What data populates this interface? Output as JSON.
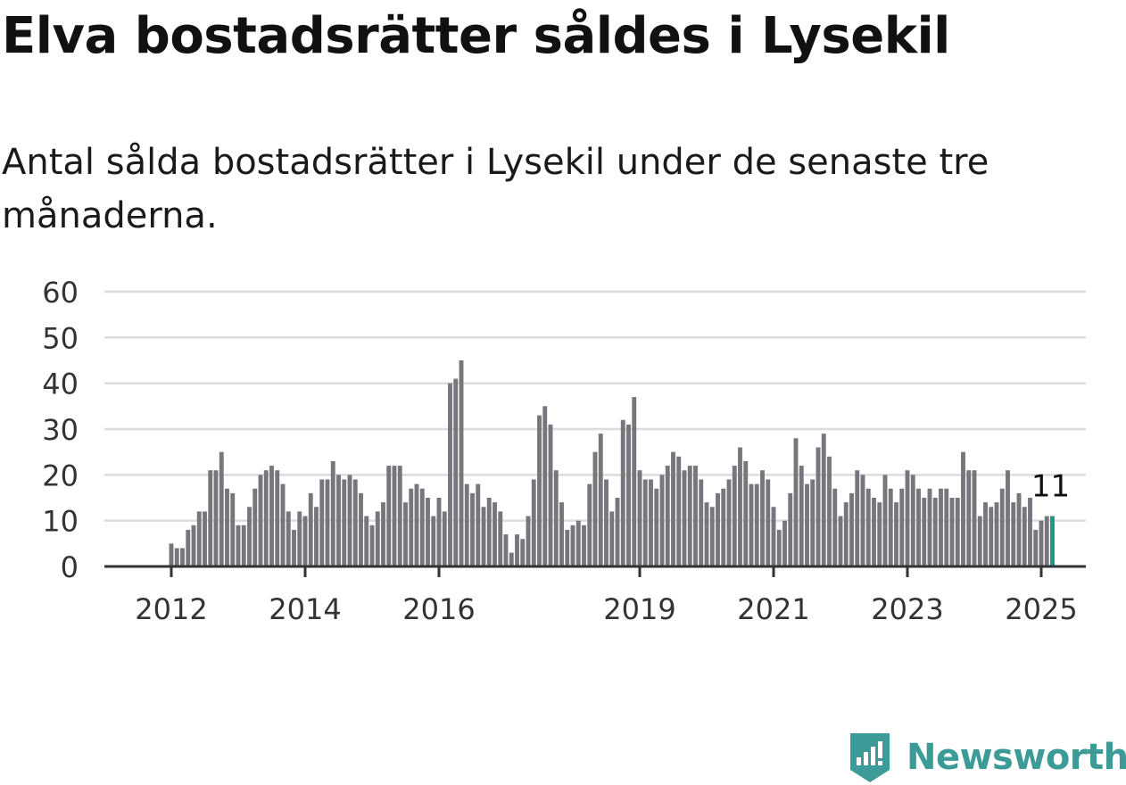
{
  "title": "Elva bostadsrätter såldes i Lysekil",
  "subtitle": "Antal sålda bostadsrätter i Lysekil under de senaste tre månaderna.",
  "brand": {
    "name": "Newsworthy",
    "logo_icon": "newsworthy-logo-icon",
    "color": "#3d9b97"
  },
  "colors": {
    "bars": "#76767c",
    "highlight": "#1a9988",
    "gridline": "#dcdcdc",
    "axis": "#333333",
    "tick_text": "#333333"
  },
  "chart_data": {
    "type": "bar",
    "title": "Elva bostadsrätter såldes i Lysekil",
    "subtitle": "Antal sålda bostadsrätter i Lysekil under de senaste tre månaderna.",
    "xlabel": "",
    "ylabel": "",
    "ylim": [
      0,
      60
    ],
    "yticks": [
      0,
      10,
      20,
      30,
      40,
      50,
      60
    ],
    "x_axis": {
      "type": "time",
      "start": "2011-01",
      "end": "2025-09",
      "ticks": [
        {
          "label": "2012",
          "month": "2012-01"
        },
        {
          "label": "2014",
          "month": "2014-01"
        },
        {
          "label": "2016",
          "month": "2016-01"
        },
        {
          "label": "2019",
          "month": "2019-01"
        },
        {
          "label": "2021",
          "month": "2021-01"
        },
        {
          "label": "2023",
          "month": "2023-01"
        },
        {
          "label": "2025",
          "month": "2025-01"
        }
      ]
    },
    "grid": true,
    "legend": "none",
    "start_month": "2012-01",
    "frequency": "monthly",
    "values": [
      5,
      4,
      4,
      8,
      9,
      12,
      12,
      21,
      21,
      25,
      17,
      16,
      9,
      9,
      13,
      17,
      20,
      21,
      22,
      21,
      18,
      12,
      8,
      12,
      11,
      16,
      13,
      19,
      19,
      23,
      20,
      19,
      20,
      19,
      16,
      11,
      9,
      12,
      14,
      22,
      22,
      22,
      14,
      17,
      18,
      17,
      15,
      11,
      15,
      12,
      40,
      41,
      45,
      18,
      16,
      18,
      13,
      15,
      14,
      12,
      7,
      3,
      7,
      6,
      11,
      19,
      33,
      35,
      31,
      21,
      14,
      8,
      9,
      10,
      9,
      18,
      25,
      29,
      19,
      12,
      15,
      32,
      31,
      37,
      21,
      19,
      19,
      17,
      20,
      22,
      25,
      24,
      21,
      22,
      22,
      19,
      14,
      13,
      16,
      17,
      19,
      22,
      26,
      23,
      18,
      18,
      21,
      19,
      13,
      8,
      10,
      16,
      28,
      22,
      18,
      19,
      26,
      29,
      24,
      17,
      11,
      14,
      16,
      21,
      20,
      17,
      15,
      14,
      20,
      17,
      14,
      17,
      21,
      20,
      17,
      15,
      17,
      15,
      17,
      17,
      15,
      15,
      25,
      21,
      21,
      11,
      14,
      13,
      14,
      17,
      21,
      14,
      16,
      13,
      15,
      8,
      10,
      11,
      11
    ],
    "highlight": {
      "month": "2025-03",
      "value": 11,
      "label": "11"
    }
  }
}
